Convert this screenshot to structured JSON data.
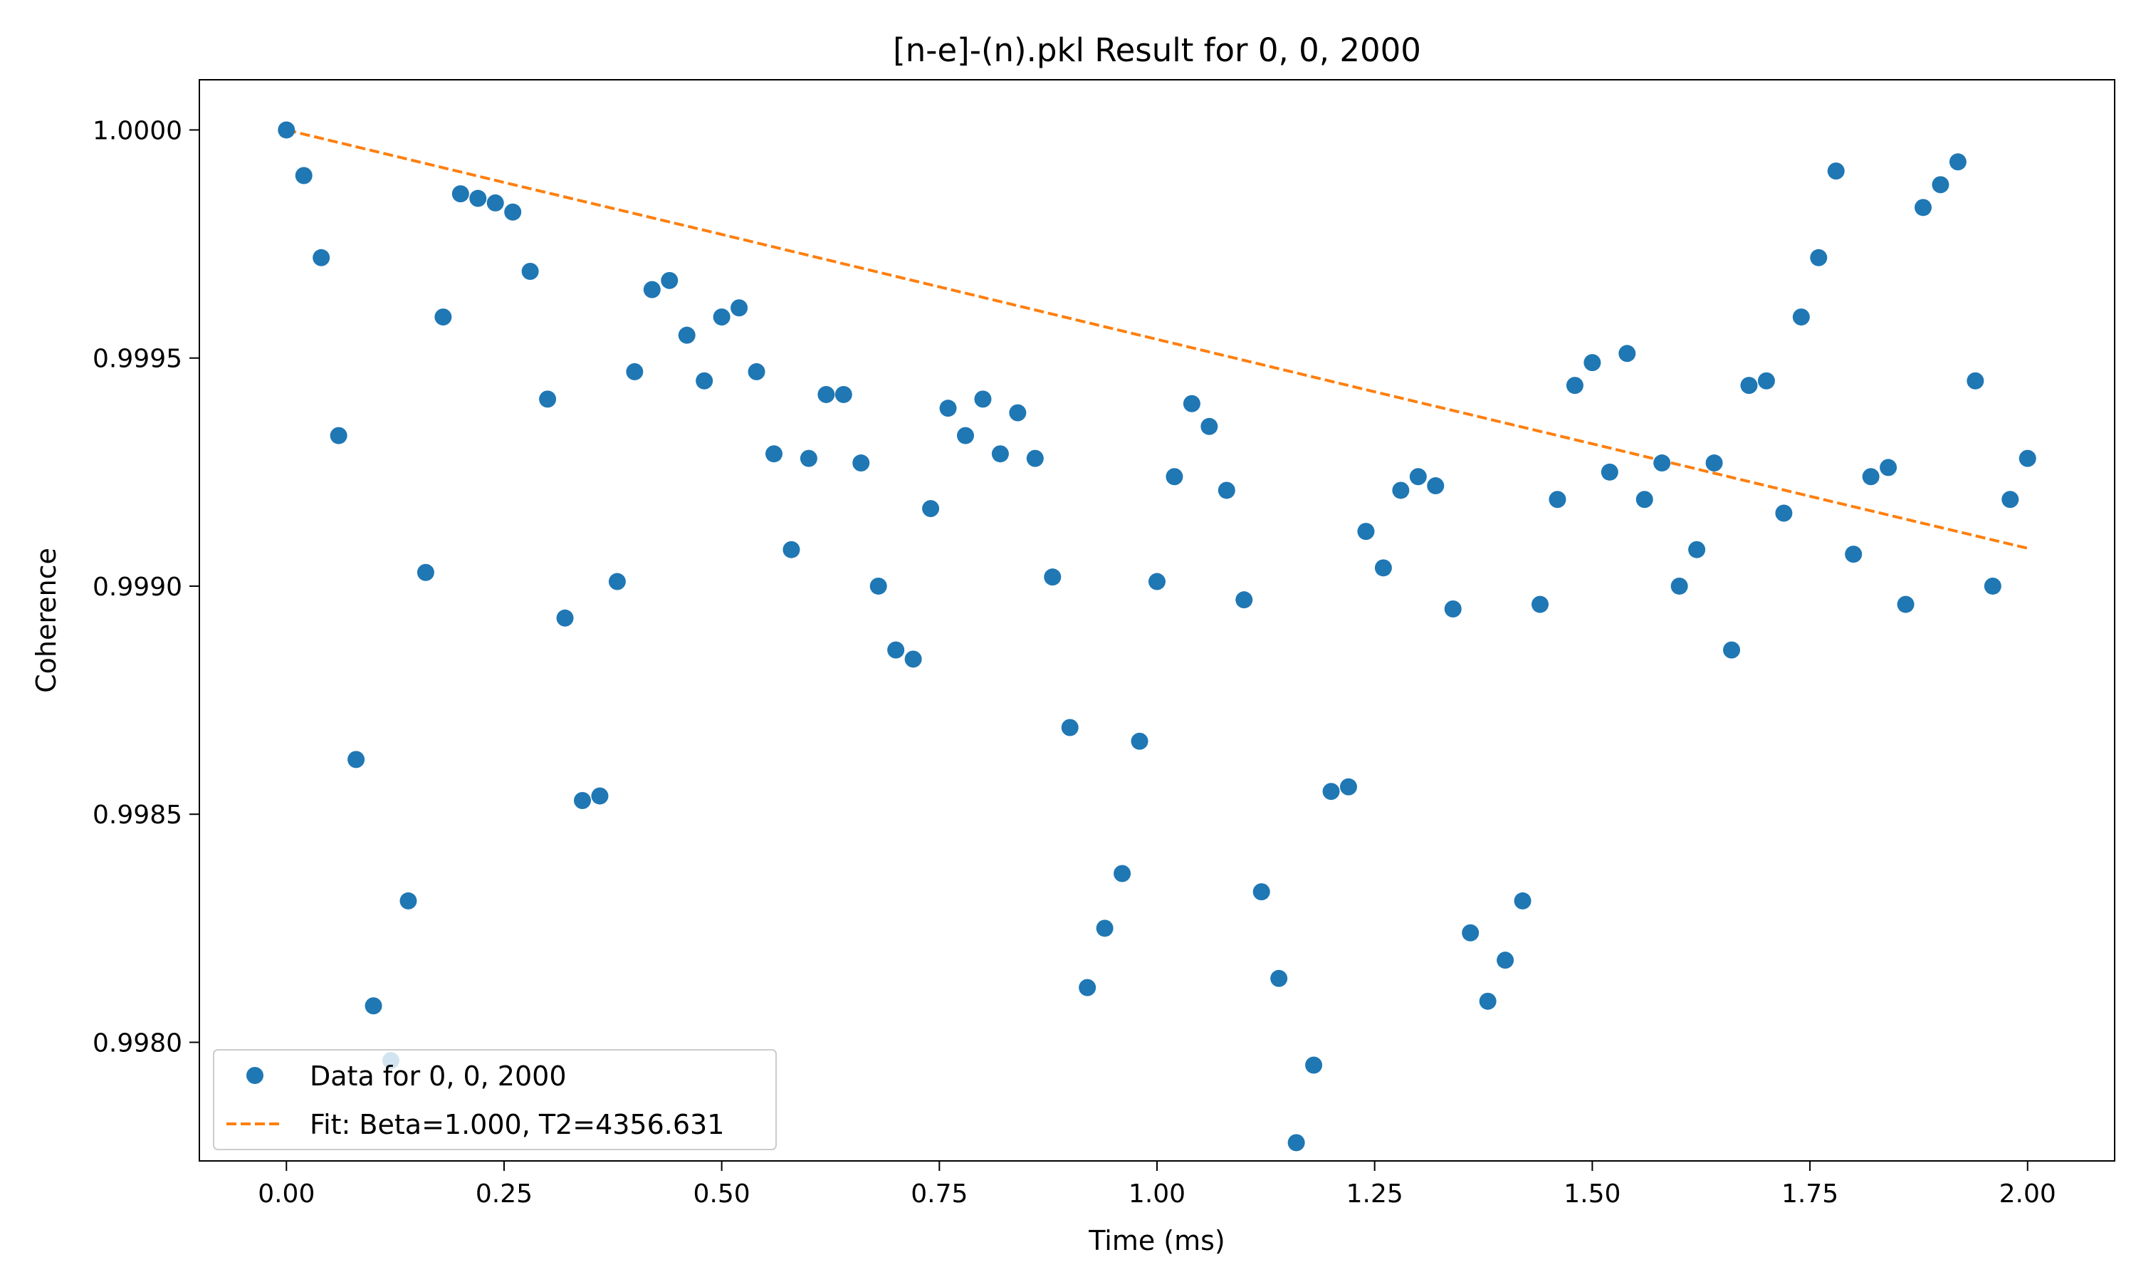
{
  "chart_data": {
    "type": "scatter",
    "title": "[n-e]-(n).pkl Result for 0, 0, 2000",
    "xlabel": "Time (ms)",
    "ylabel": "Coherence",
    "xlim": [
      -0.1,
      2.1
    ],
    "ylim": [
      0.99774,
      1.00011
    ],
    "x_ticks": [
      0.0,
      0.25,
      0.5,
      0.75,
      1.0,
      1.25,
      1.5,
      1.75,
      2.0
    ],
    "x_tick_labels": [
      "0.00",
      "0.25",
      "0.50",
      "0.75",
      "1.00",
      "1.25",
      "1.50",
      "1.75",
      "2.00"
    ],
    "y_ticks": [
      0.998,
      0.9985,
      0.999,
      0.9995,
      1.0
    ],
    "y_tick_labels": [
      "0.9980",
      "0.9985",
      "0.9990",
      "0.9995",
      "1.0000"
    ],
    "grid": false,
    "legend_position": "lower-left",
    "series": [
      {
        "name": "Data for 0, 0, 2000",
        "style": "markers",
        "color": "#1f77b4",
        "x": [
          0.0,
          0.02,
          0.04,
          0.06,
          0.08,
          0.1,
          0.12,
          0.14,
          0.16,
          0.18,
          0.2,
          0.22,
          0.24,
          0.26,
          0.28,
          0.3,
          0.32,
          0.34,
          0.36,
          0.38,
          0.4,
          0.42,
          0.44,
          0.46,
          0.48,
          0.5,
          0.52,
          0.54,
          0.56,
          0.58,
          0.6,
          0.62,
          0.64,
          0.66,
          0.68,
          0.7,
          0.72,
          0.74,
          0.76,
          0.78,
          0.8,
          0.82,
          0.84,
          0.86,
          0.88,
          0.9,
          0.92,
          0.94,
          0.96,
          0.98,
          1.0,
          1.02,
          1.04,
          1.06,
          1.08,
          1.1,
          1.12,
          1.14,
          1.16,
          1.18,
          1.2,
          1.22,
          1.24,
          1.26,
          1.28,
          1.3,
          1.32,
          1.34,
          1.36,
          1.38,
          1.4,
          1.42,
          1.44,
          1.46,
          1.48,
          1.5,
          1.52,
          1.54,
          1.56,
          1.58,
          1.6,
          1.62,
          1.64,
          1.66,
          1.68,
          1.7,
          1.72,
          1.74,
          1.76,
          1.78,
          1.8,
          1.82,
          1.84,
          1.86,
          1.88,
          1.9,
          1.92,
          1.94,
          1.96,
          1.98,
          2.0
        ],
        "y": [
          1.0,
          0.9999,
          0.99972,
          0.99933,
          0.99862,
          0.99808,
          0.99796,
          0.99831,
          0.99903,
          0.99959,
          0.99986,
          0.99985,
          0.99984,
          0.99982,
          0.99969,
          0.99941,
          0.99893,
          0.99853,
          0.99854,
          0.99901,
          0.99947,
          0.99965,
          0.99967,
          0.99955,
          0.99945,
          0.99959,
          0.99961,
          0.99947,
          0.99929,
          0.99908,
          0.99928,
          0.99942,
          0.99942,
          0.99927,
          0.999,
          0.99886,
          0.99884,
          0.99917,
          0.99939,
          0.99933,
          0.99941,
          0.99929,
          0.99938,
          0.99928,
          0.99902,
          0.99869,
          0.99812,
          0.99825,
          0.99837,
          0.99866,
          0.99901,
          0.99924,
          0.9994,
          0.99935,
          0.99921,
          0.99897,
          0.99833,
          0.99814,
          0.99778,
          0.99795,
          0.99855,
          0.99856,
          0.99912,
          0.99904,
          0.99921,
          0.99924,
          0.99922,
          0.99895,
          0.99824,
          0.99809,
          0.99818,
          0.99831,
          0.99896,
          0.99919,
          0.99944,
          0.99949,
          0.99925,
          0.99951,
          0.99919,
          0.99927,
          0.999,
          0.99908,
          0.99927,
          0.99886,
          0.99944,
          0.99945,
          0.99916,
          0.99959,
          0.99972,
          0.99991,
          0.99907,
          0.99924,
          0.99926,
          0.99896,
          0.99983,
          0.99988,
          0.99993,
          0.99945,
          0.999,
          0.99919,
          0.99928
        ]
      },
      {
        "name": "Fit: Beta=1.000, T2=4356.631",
        "style": "dashed-line",
        "color": "#ff7f0e",
        "x": [
          0.0,
          0.25,
          0.5,
          0.75,
          1.0,
          1.25,
          1.5,
          1.75,
          2.0
        ],
        "y": [
          1.0,
          0.999885,
          0.999771,
          0.999656,
          0.999541,
          0.999426,
          0.999312,
          0.999197,
          0.999083
        ]
      }
    ]
  }
}
